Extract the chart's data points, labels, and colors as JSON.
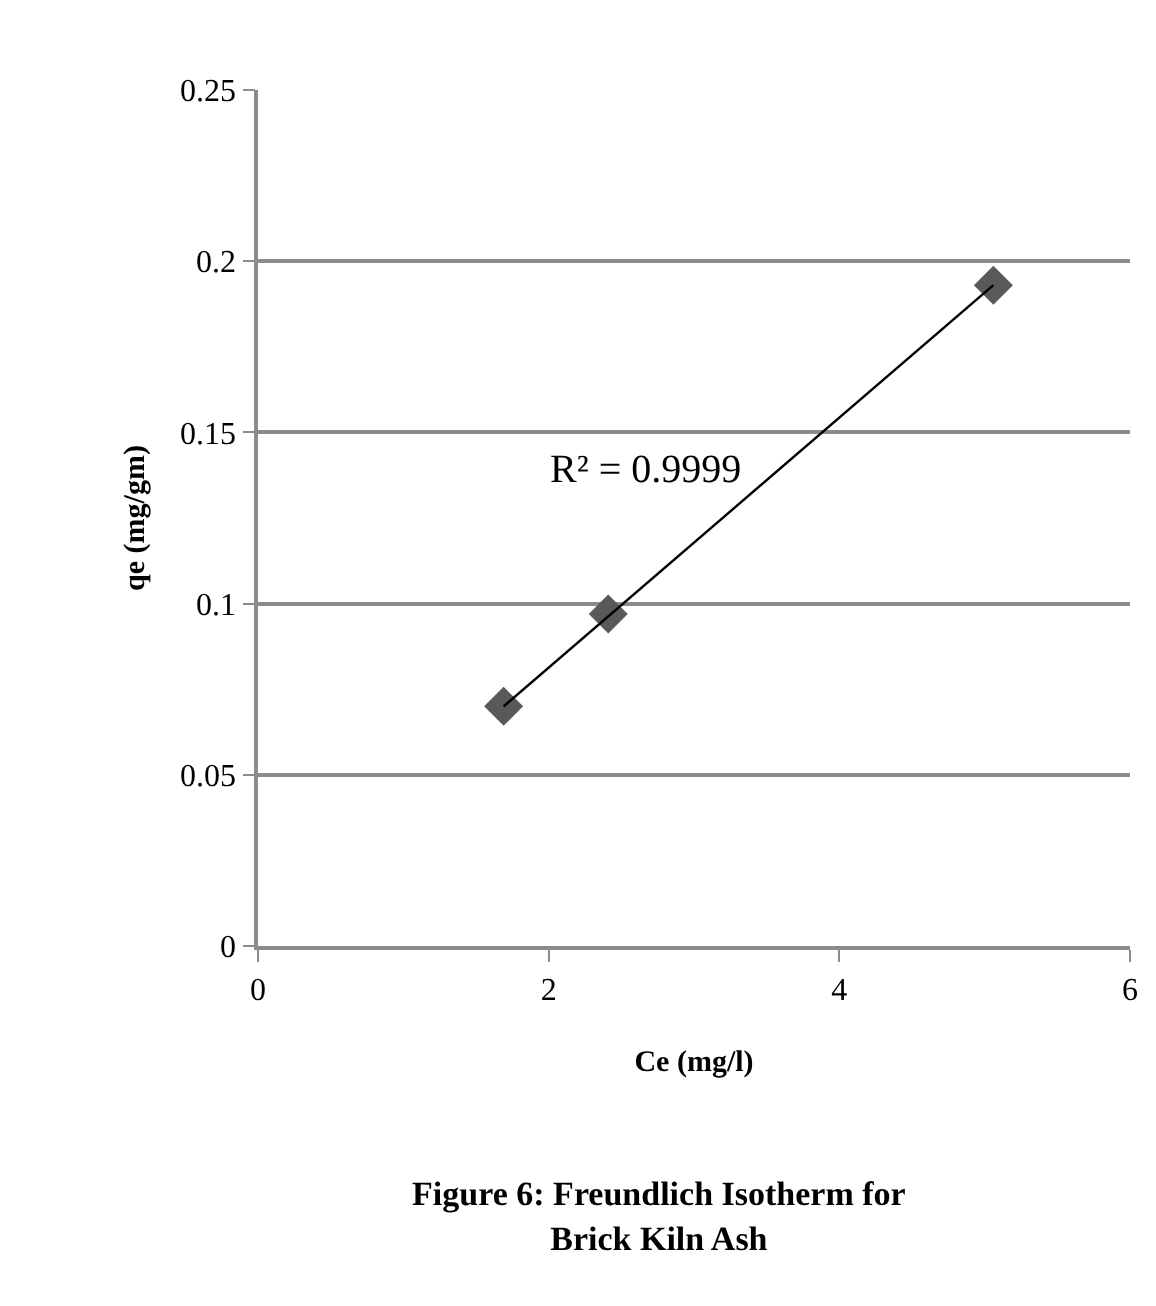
{
  "chart_data": {
    "type": "scatter",
    "title": "Figure 6: Freundlich Isotherm for\nBrick Kiln Ash",
    "xlabel": "Ce (mg/l)",
    "ylabel": "qe (mg/gm)",
    "x": [
      1.69,
      2.41,
      5.06
    ],
    "series": [
      {
        "color": "#595959",
        "values": [
          0.07,
          0.097,
          0.193
        ],
        "marker": "diamond"
      },
      {
        "type": "line",
        "color": "#000000",
        "x": [
          1.69,
          5.06
        ],
        "values": [
          0.07,
          0.193
        ],
        "marker": "none"
      }
    ],
    "annotations": [
      "R² = 0.9999"
    ],
    "xlim": [
      0,
      6
    ],
    "xticks": [
      0,
      2,
      4,
      6
    ],
    "ylim": [
      0,
      0.25
    ],
    "yticks": [
      0,
      0.05,
      0.1,
      0.15,
      0.2,
      0.25
    ],
    "grid": "y"
  }
}
